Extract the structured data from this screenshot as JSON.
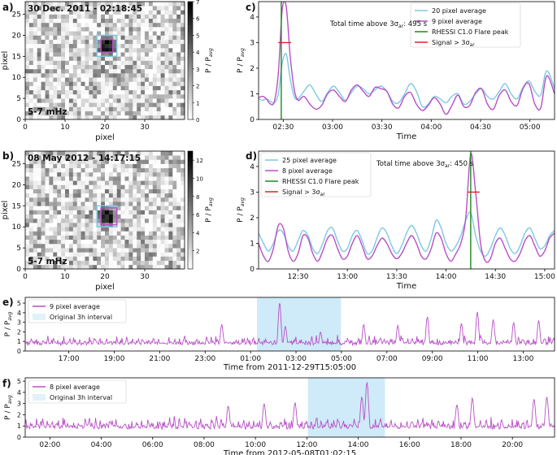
{
  "figure": {
    "panel_labels": [
      "a)",
      "b)",
      "c)",
      "d)",
      "e)",
      "f)"
    ]
  },
  "chart_data": [
    {
      "id": "a",
      "type": "heatmap",
      "title": "30 Dec. 2011 - 02:18:45",
      "corner_text": "5-7 mHz",
      "xlabel": "pixel",
      "ylabel": "pixel",
      "xlim": [
        0,
        40
      ],
      "ylim": [
        0,
        28
      ],
      "xticks": [
        0,
        10,
        20,
        30
      ],
      "yticks": [
        0,
        5,
        10,
        15,
        20,
        25
      ],
      "colorbar": {
        "label": "P / P_avg",
        "min": 0,
        "max": 7,
        "ticks": [
          0,
          1,
          2,
          3,
          4,
          5,
          6,
          7
        ]
      },
      "hotspot": {
        "x": 20.5,
        "y": 17.5
      },
      "boxes": [
        {
          "color": "#7ec8e3",
          "x0": 18,
          "y0": 15,
          "x1": 23,
          "y1": 20
        },
        {
          "color": "#b94fc7",
          "x0": 19,
          "y0": 16,
          "x1": 22,
          "y1": 19
        }
      ]
    },
    {
      "id": "b",
      "type": "heatmap",
      "title": "08 May 2012 - 14:17:15",
      "corner_text": "5-7 mHz",
      "xlabel": "pixel",
      "ylabel": "pixel",
      "xlim": [
        0,
        40
      ],
      "ylim": [
        0,
        28
      ],
      "xticks": [
        0,
        10,
        20,
        30
      ],
      "yticks": [
        0,
        5,
        10,
        15,
        20,
        25
      ],
      "colorbar": {
        "label": "P / P_avg",
        "min": 0,
        "max": 13,
        "ticks": [
          2,
          4,
          6,
          8,
          10,
          12
        ]
      },
      "hotspot": {
        "x": 20.5,
        "y": 12.5
      },
      "boxes": [
        {
          "color": "#7ec8e3",
          "x0": 18,
          "y0": 10,
          "x1": 23,
          "y1": 15
        },
        {
          "color": "#b94fc7",
          "x0": 19,
          "y0": 10.5,
          "x1": 23,
          "y1": 14.5
        }
      ]
    },
    {
      "id": "c",
      "type": "line",
      "xlabel": "Time",
      "ylabel": "P / P_avg",
      "xlim": [
        0,
        3
      ],
      "ylim": [
        0,
        4.6
      ],
      "yticks": [
        0,
        1,
        2,
        3,
        4
      ],
      "xtick_values": [
        0.25,
        0.75,
        1.25,
        1.75,
        2.25,
        2.75
      ],
      "xtick_labels": [
        "02:30",
        "03:00",
        "03:30",
        "04:00",
        "04:30",
        "05:00"
      ],
      "annotation": "Total time above 3σ_ar: 495 s",
      "flare_x": 0.23,
      "signal": {
        "x0": 0.2,
        "x1": 0.33,
        "y": 3.0
      },
      "legend": [
        "20 pixel average",
        "9 pixel average",
        "RHESSI C1.0 Flare peak",
        "Signal > 3σ_ar"
      ],
      "series": [
        {
          "name": "20 pixel average",
          "color": "#7ec8e3",
          "x": [
            0,
            0.04,
            0.08,
            0.12,
            0.16,
            0.2,
            0.24,
            0.28,
            0.32,
            0.36,
            0.4,
            0.46,
            0.52,
            0.58,
            0.64,
            0.7,
            0.76,
            0.82,
            0.88,
            0.94,
            1.0,
            1.06,
            1.12,
            1.18,
            1.24,
            1.3,
            1.36,
            1.42,
            1.48,
            1.54,
            1.6,
            1.66,
            1.72,
            1.78,
            1.84,
            1.9,
            1.96,
            2.02,
            2.08,
            2.14,
            2.2,
            2.26,
            2.32,
            2.38,
            2.44,
            2.5,
            2.56,
            2.62,
            2.68,
            2.74,
            2.8,
            2.86,
            2.92,
            3.0
          ],
          "y": [
            0.8,
            0.75,
            0.8,
            0.7,
            0.65,
            1.0,
            2.2,
            2.55,
            1.6,
            0.9,
            0.8,
            1.1,
            1.35,
            1.0,
            0.7,
            1.05,
            1.3,
            1.05,
            0.75,
            1.05,
            1.3,
            1.2,
            1.0,
            1.15,
            1.3,
            1.1,
            0.7,
            0.65,
            1.0,
            1.4,
            1.1,
            0.5,
            0.6,
            0.9,
            0.8,
            0.65,
            0.9,
            1.0,
            0.6,
            0.7,
            1.0,
            1.2,
            0.9,
            0.8,
            1.1,
            1.4,
            1.0,
            0.8,
            1.25,
            1.5,
            1.1,
            0.95,
            1.9,
            1.2
          ]
        },
        {
          "name": "9 pixel average",
          "color": "#b94fc7",
          "x": [
            0,
            0.04,
            0.08,
            0.12,
            0.16,
            0.2,
            0.24,
            0.28,
            0.32,
            0.36,
            0.4,
            0.46,
            0.52,
            0.58,
            0.64,
            0.7,
            0.76,
            0.82,
            0.88,
            0.94,
            1.0,
            1.06,
            1.12,
            1.18,
            1.24,
            1.3,
            1.36,
            1.42,
            1.48,
            1.54,
            1.6,
            1.66,
            1.72,
            1.78,
            1.84,
            1.9,
            1.96,
            2.02,
            2.08,
            2.14,
            2.2,
            2.26,
            2.32,
            2.38,
            2.44,
            2.5,
            2.56,
            2.62,
            2.68,
            2.74,
            2.8,
            2.86,
            2.92,
            3.0
          ],
          "y": [
            0.85,
            0.9,
            0.8,
            0.6,
            0.7,
            1.8,
            4.3,
            4.4,
            2.5,
            1.2,
            0.75,
            0.9,
            0.6,
            0.4,
            0.55,
            1.0,
            1.15,
            0.9,
            0.7,
            1.15,
            1.35,
            1.1,
            0.9,
            1.25,
            1.2,
            1.1,
            0.6,
            0.45,
            0.9,
            1.05,
            0.6,
            0.35,
            0.55,
            0.85,
            0.6,
            0.2,
            0.55,
            0.95,
            0.5,
            0.55,
            1.05,
            1.2,
            0.6,
            0.4,
            0.95,
            1.15,
            0.7,
            0.55,
            1.2,
            1.4,
            0.6,
            0.45,
            1.7,
            1.0
          ]
        }
      ]
    },
    {
      "id": "d",
      "type": "line",
      "xlabel": "Time",
      "ylabel": "P / P_avg",
      "xlim": [
        0,
        3
      ],
      "ylim": [
        0,
        4.6
      ],
      "yticks": [
        0,
        1,
        2,
        3,
        4
      ],
      "xtick_values": [
        0.4,
        0.9,
        1.4,
        1.9,
        2.4,
        2.9
      ],
      "xtick_labels": [
        "12:30",
        "13:00",
        "13:30",
        "14:00",
        "14:30",
        "15:00"
      ],
      "annotation": "Total time above 3σ_ar: 450 s",
      "flare_x": 2.15,
      "signal": {
        "x0": 2.12,
        "x1": 2.24,
        "y": 3.0
      },
      "legend": [
        "25 pixel average",
        "8 pixel average",
        "RHESSI C1.0 Flare peak",
        "Signal > 3σ_ar"
      ],
      "series": [
        {
          "name": "25 pixel average",
          "color": "#7ec8e3",
          "x": [
            0,
            0.05,
            0.1,
            0.15,
            0.2,
            0.25,
            0.3,
            0.35,
            0.4,
            0.45,
            0.5,
            0.55,
            0.6,
            0.65,
            0.7,
            0.75,
            0.8,
            0.85,
            0.9,
            0.95,
            1.0,
            1.05,
            1.1,
            1.15,
            1.2,
            1.25,
            1.3,
            1.35,
            1.4,
            1.45,
            1.5,
            1.55,
            1.6,
            1.65,
            1.7,
            1.75,
            1.8,
            1.85,
            1.9,
            1.95,
            2.0,
            2.05,
            2.1,
            2.15,
            2.2,
            2.25,
            2.3,
            2.35,
            2.4,
            2.45,
            2.5,
            2.55,
            2.6,
            2.65,
            2.7,
            2.75,
            2.8,
            2.85,
            2.9,
            2.95,
            3.0
          ],
          "y": [
            1.4,
            1.0,
            0.7,
            1.0,
            1.5,
            1.4,
            0.9,
            0.7,
            1.1,
            1.5,
            1.3,
            0.8,
            0.6,
            1.0,
            1.5,
            1.6,
            1.1,
            0.7,
            0.8,
            1.3,
            1.5,
            1.1,
            0.6,
            0.7,
            1.2,
            1.6,
            1.4,
            0.9,
            0.6,
            0.9,
            1.4,
            1.7,
            1.4,
            0.9,
            0.7,
            1.2,
            1.9,
            1.6,
            1.0,
            0.7,
            0.9,
            1.3,
            1.9,
            2.2,
            1.3,
            0.7,
            0.5,
            0.8,
            1.3,
            1.6,
            1.3,
            0.8,
            0.6,
            0.9,
            1.4,
            1.6,
            1.2,
            0.8,
            0.9,
            1.3,
            1.5
          ]
        },
        {
          "name": "8 pixel average",
          "color": "#b94fc7",
          "x": [
            0,
            0.05,
            0.1,
            0.15,
            0.2,
            0.25,
            0.3,
            0.35,
            0.4,
            0.45,
            0.5,
            0.55,
            0.6,
            0.65,
            0.7,
            0.75,
            0.8,
            0.85,
            0.9,
            0.95,
            1.0,
            1.05,
            1.1,
            1.15,
            1.2,
            1.25,
            1.3,
            1.35,
            1.4,
            1.45,
            1.5,
            1.55,
            1.6,
            1.65,
            1.7,
            1.75,
            1.8,
            1.85,
            1.9,
            1.95,
            2.0,
            2.05,
            2.1,
            2.15,
            2.2,
            2.25,
            2.3,
            2.35,
            2.4,
            2.45,
            2.5,
            2.55,
            2.6,
            2.65,
            2.7,
            2.75,
            2.8,
            2.85,
            2.9,
            2.95,
            3.0
          ],
          "y": [
            1.0,
            0.5,
            0.3,
            0.8,
            1.7,
            1.6,
            0.7,
            0.3,
            0.6,
            1.3,
            1.2,
            0.6,
            0.3,
            0.7,
            1.2,
            1.3,
            0.8,
            0.4,
            0.5,
            1.0,
            1.3,
            0.9,
            0.4,
            0.5,
            0.9,
            1.2,
            1.0,
            0.6,
            0.4,
            0.6,
            1.0,
            1.3,
            1.0,
            0.5,
            0.4,
            0.8,
            1.4,
            1.2,
            0.6,
            0.3,
            0.6,
            1.0,
            2.0,
            4.5,
            3.0,
            1.0,
            0.3,
            0.4,
            1.0,
            1.2,
            0.8,
            0.4,
            0.3,
            0.6,
            1.1,
            1.3,
            0.9,
            0.5,
            0.7,
            1.2,
            1.4
          ]
        }
      ]
    },
    {
      "id": "e",
      "type": "line",
      "xlabel": "Time from 2011-12-29T15:05:00",
      "ylabel": "P / P_avg",
      "xlim": [
        0,
        23.3
      ],
      "ylim": [
        0,
        5.6
      ],
      "yticks": [
        0,
        1,
        2,
        3,
        4,
        5
      ],
      "xtick_values": [
        1.92,
        3.92,
        5.92,
        7.92,
        9.92,
        11.92,
        13.92,
        15.92,
        17.92,
        19.92,
        21.92
      ],
      "xtick_labels": [
        "17:00",
        "19:00",
        "21:00",
        "23:00",
        "01:00",
        "03:00",
        "05:00",
        "07:00",
        "09:00",
        "11:00",
        "13:00"
      ],
      "interval": [
        10.2,
        13.9
      ],
      "legend": [
        "9 pixel average",
        "Original 3h interval"
      ],
      "series": [
        {
          "name": "9 pixel average",
          "color": "#b94fc7",
          "noise_seed": 7,
          "base": 0.85,
          "amp": 0.9,
          "spikes": [
            [
              8.65,
              2.8
            ],
            [
              11.2,
              5.1
            ],
            [
              11.45,
              2.6
            ],
            [
              13.0,
              2.0
            ],
            [
              14.9,
              2.8
            ],
            [
              16.4,
              2.7
            ],
            [
              17.7,
              3.6
            ],
            [
              19.2,
              2.9
            ],
            [
              19.9,
              4.1
            ],
            [
              20.6,
              3.3
            ],
            [
              21.5,
              3.0
            ],
            [
              22.6,
              3.2
            ]
          ]
        }
      ]
    },
    {
      "id": "f",
      "type": "line",
      "xlabel": "Time from 2012-05-08T01:02:15",
      "ylabel": "P / P_avg",
      "xlim": [
        0,
        20.6
      ],
      "ylim": [
        0,
        5.3
      ],
      "yticks": [
        0,
        1,
        2,
        3,
        4,
        5
      ],
      "xtick_values": [
        0.96,
        2.96,
        4.96,
        6.96,
        8.96,
        10.96,
        12.96,
        14.96,
        16.96,
        18.96
      ],
      "xtick_labels": [
        "02:00",
        "04:00",
        "06:00",
        "08:00",
        "10:00",
        "12:00",
        "14:00",
        "16:00",
        "18:00",
        "20:00"
      ],
      "interval": [
        11.0,
        14.0
      ],
      "legend": [
        "8 pixel average",
        "Original 3h interval"
      ],
      "series": [
        {
          "name": "8 pixel average",
          "color": "#b94fc7",
          "noise_seed": 13,
          "base": 0.95,
          "amp": 1.0,
          "spikes": [
            [
              7.9,
              2.8
            ],
            [
              9.3,
              3.0
            ],
            [
              10.5,
              3.1
            ],
            [
              13.1,
              3.6
            ],
            [
              13.3,
              4.9
            ],
            [
              16.8,
              2.9
            ],
            [
              17.4,
              3.5
            ],
            [
              19.8,
              3.4
            ],
            [
              20.3,
              3.6
            ]
          ]
        }
      ]
    }
  ]
}
